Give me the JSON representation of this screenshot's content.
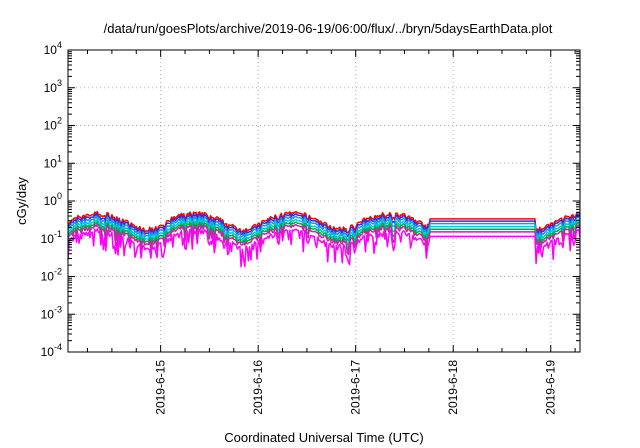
{
  "chart_data": {
    "type": "line",
    "title": "/data/run/goesPlots/archive/2019-06-19/06:00/flux/../bryn/5daysEarthData.plot",
    "xlabel": "Coordinated Universal Time (UTC)",
    "ylabel": "cGy/day",
    "yscale": "log",
    "ylim": [
      0.0001,
      10000
    ],
    "xlim": [
      14.05,
      19.3
    ],
    "y_ticks": [
      {
        "base": "10",
        "exp": "-4"
      },
      {
        "base": "10",
        "exp": "-3"
      },
      {
        "base": "10",
        "exp": "-2"
      },
      {
        "base": "10",
        "exp": "-1"
      },
      {
        "base": "10",
        "exp": "0"
      },
      {
        "base": "10",
        "exp": "1"
      },
      {
        "base": "10",
        "exp": "2"
      },
      {
        "base": "10",
        "exp": "3"
      },
      {
        "base": "10",
        "exp": "4"
      }
    ],
    "x_ticks": [
      {
        "label": "2019-6-15",
        "value": 15
      },
      {
        "label": "2019-6-16",
        "value": 16
      },
      {
        "label": "2019-6-17",
        "value": 17
      },
      {
        "label": "2019-6-18",
        "value": 18
      },
      {
        "label": "2019-6-19",
        "value": 19
      }
    ],
    "grid": true,
    "gap": [
      17.75,
      18.85
    ],
    "series": [
      {
        "color": "#ff0000",
        "level": 0.32
      },
      {
        "color": "#2233ee",
        "level": 0.28
      },
      {
        "color": "#1199ee",
        "level": 0.24
      },
      {
        "color": "#00cccc",
        "level": 0.2
      },
      {
        "color": "#00aa44",
        "level": 0.17
      },
      {
        "color": "#cc22aa",
        "level": 0.145
      },
      {
        "color": "#ff00ff",
        "level": 0.11
      }
    ]
  }
}
